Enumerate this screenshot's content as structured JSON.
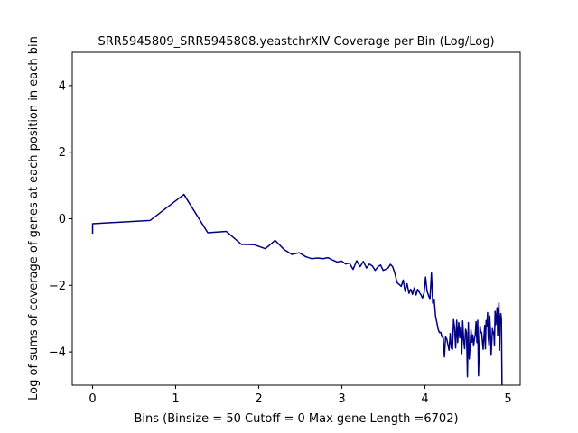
{
  "chart_data": {
    "type": "line",
    "title": "SRR5945809_SRR5945808.yeastchrXIV Coverage per Bin (Log/Log)",
    "xlabel": "Bins  (Binsize = 50 Cutoff = 0 Max gene Length =6702)",
    "ylabel": "Log of sums of coverage of genes at each position in each bin",
    "xlim": [
      -0.245,
      5.146
    ],
    "ylim": [
      -5.0,
      5.0
    ],
    "x_ticks": [
      0,
      1,
      2,
      3,
      4,
      5
    ],
    "y_ticks": [
      -4,
      -2,
      0,
      2,
      4
    ],
    "grid": false,
    "line_color": "#000080",
    "series": [
      {
        "x": [
          0.0,
          0.0,
          0.693,
          1.099,
          1.386,
          1.609,
          1.792,
          1.946,
          2.079,
          2.197,
          2.303,
          2.398,
          2.485,
          2.565,
          2.639,
          2.708,
          2.773,
          2.833,
          2.89,
          2.944,
          2.996,
          3.045,
          3.091,
          3.135,
          3.178,
          3.219,
          3.258,
          3.296,
          3.332,
          3.367,
          3.401,
          3.434,
          3.466,
          3.497,
          3.526,
          3.555,
          3.584,
          3.611,
          3.638,
          3.664,
          3.689,
          3.714,
          3.738,
          3.761,
          3.784,
          3.807,
          3.829,
          3.85,
          3.871,
          3.892,
          3.912,
          3.932,
          3.951,
          3.97,
          3.989,
          4.007,
          4.025,
          4.043,
          4.06,
          4.078,
          4.094,
          4.111,
          4.127,
          4.143,
          4.159,
          4.174,
          4.19,
          4.205,
          4.22,
          4.234,
          4.248,
          4.263,
          4.277,
          4.29,
          4.304,
          4.317,
          4.331,
          4.344,
          4.357,
          4.369,
          4.382,
          4.394,
          4.407,
          4.419,
          4.431,
          4.443,
          4.454,
          4.466,
          4.477,
          4.489,
          4.5,
          4.511,
          4.522,
          4.533,
          4.543,
          4.554,
          4.564,
          4.575,
          4.585,
          4.595,
          4.605,
          4.615,
          4.625,
          4.635,
          4.644,
          4.654,
          4.663,
          4.673,
          4.682,
          4.691,
          4.7,
          4.71,
          4.719,
          4.727,
          4.736,
          4.745,
          4.754,
          4.762,
          4.771,
          4.779,
          4.787,
          4.796,
          4.804,
          4.812,
          4.82,
          4.828,
          4.836,
          4.844,
          4.852,
          4.86,
          4.868,
          4.875,
          4.883,
          4.89,
          4.898,
          4.905,
          4.913,
          4.92,
          4.927
        ],
        "y": [
          -0.45,
          -0.15,
          -0.05,
          0.73,
          -0.42,
          -0.38,
          -0.77,
          -0.78,
          -0.9,
          -0.65,
          -0.92,
          -1.07,
          -1.02,
          -1.14,
          -1.2,
          -1.18,
          -1.2,
          -1.17,
          -1.24,
          -1.3,
          -1.27,
          -1.36,
          -1.33,
          -1.52,
          -1.26,
          -1.44,
          -1.28,
          -1.48,
          -1.36,
          -1.42,
          -1.55,
          -1.44,
          -1.39,
          -1.55,
          -1.52,
          -1.48,
          -1.37,
          -1.44,
          -1.64,
          -1.92,
          -1.97,
          -2.03,
          -1.84,
          -2.18,
          -1.95,
          -2.24,
          -2.12,
          -2.27,
          -2.08,
          -2.29,
          -2.12,
          -2.21,
          -2.28,
          -2.38,
          -2.23,
          -1.75,
          -2.18,
          -2.3,
          -2.42,
          -1.63,
          -2.54,
          -2.44,
          -2.92,
          -3.12,
          -3.32,
          -3.42,
          -3.41,
          -3.55,
          -3.58,
          -4.15,
          -3.55,
          -3.62,
          -3.8,
          -3.95,
          -3.45,
          -3.89,
          -3.92,
          -3.03,
          -3.28,
          -3.88,
          -3.05,
          -3.72,
          -3.12,
          -3.58,
          -3.24,
          -4.05,
          -3.07,
          -3.67,
          -3.9,
          -3.32,
          -3.42,
          -4.75,
          -3.12,
          -4.21,
          -3.84,
          -3.34,
          -3.71,
          -3.49,
          -3.82,
          -3.62,
          -3.48,
          -3.09,
          -3.72,
          -3.05,
          -4.72,
          -3.85,
          -3.22,
          -3.42,
          -3.41,
          -3.68,
          -3.92,
          -3.54,
          -3.2,
          -3.91,
          -3.06,
          -3.24,
          -2.82,
          -3.58,
          -3.82,
          -2.92,
          -3.3,
          -4.1,
          -3.72,
          -3.3,
          -3.45,
          -3.4,
          -3.82,
          -2.78,
          -3.18,
          -2.98,
          -2.67,
          -3.52,
          -2.85,
          -2.52,
          -3.95,
          -2.98,
          -2.85,
          -3.01,
          -5.0
        ]
      }
    ]
  }
}
